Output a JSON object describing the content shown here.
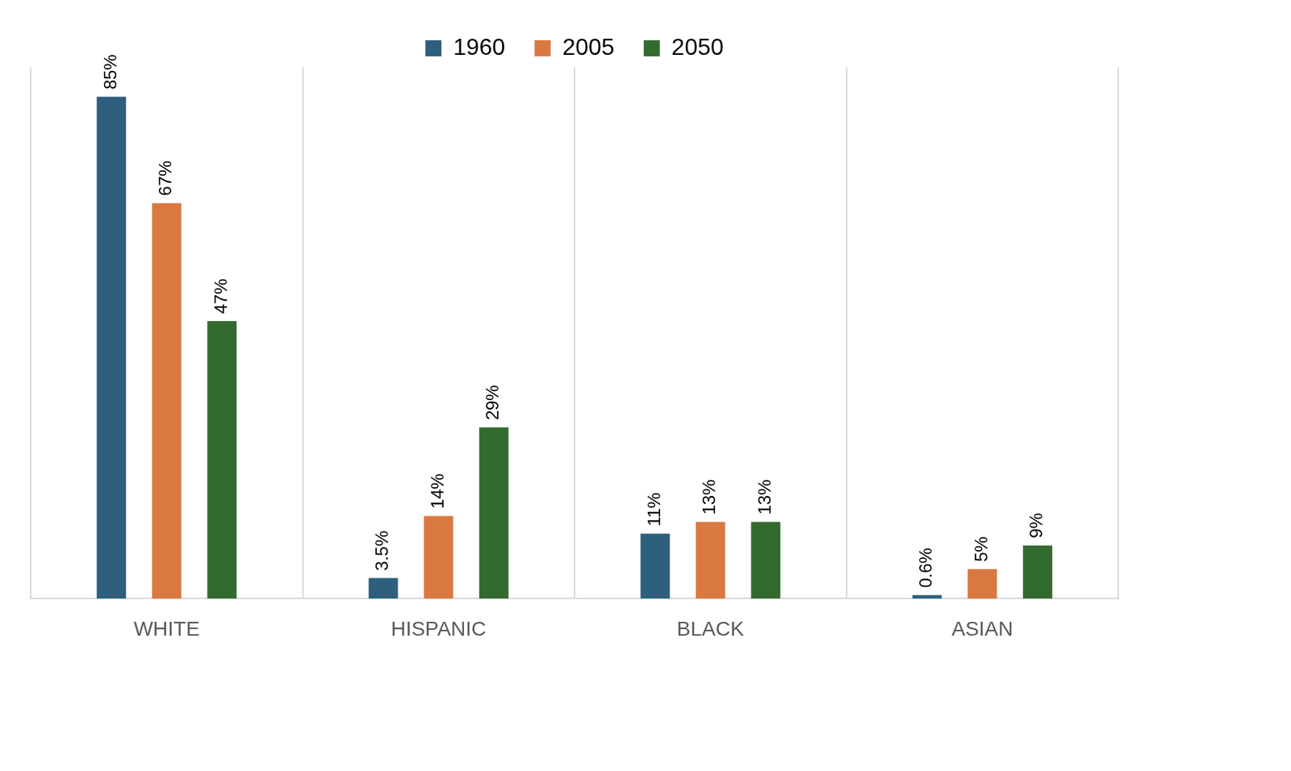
{
  "chart_data": {
    "type": "bar",
    "categories": [
      "WHITE",
      "HISPANIC",
      "BLACK",
      "ASIAN"
    ],
    "series": [
      {
        "name": "1960",
        "color": "#2e5f7f",
        "values": [
          85,
          3.5,
          11,
          0.6
        ],
        "value_labels": [
          "85%",
          "3.5%",
          "11%",
          "0.6%"
        ]
      },
      {
        "name": "2005",
        "color": "#d97941",
        "values": [
          67,
          14,
          13,
          5
        ],
        "value_labels": [
          "67%",
          "14%",
          "13%",
          "5%"
        ]
      },
      {
        "name": "2050",
        "color": "#336b2e",
        "values": [
          47,
          29,
          13,
          9
        ],
        "value_labels": [
          "47%",
          "29%",
          "13%",
          "9%"
        ]
      }
    ],
    "ylim": [
      0,
      90
    ],
    "grid": true,
    "legend": "top",
    "data_labels": true,
    "tick_labels": "x"
  }
}
